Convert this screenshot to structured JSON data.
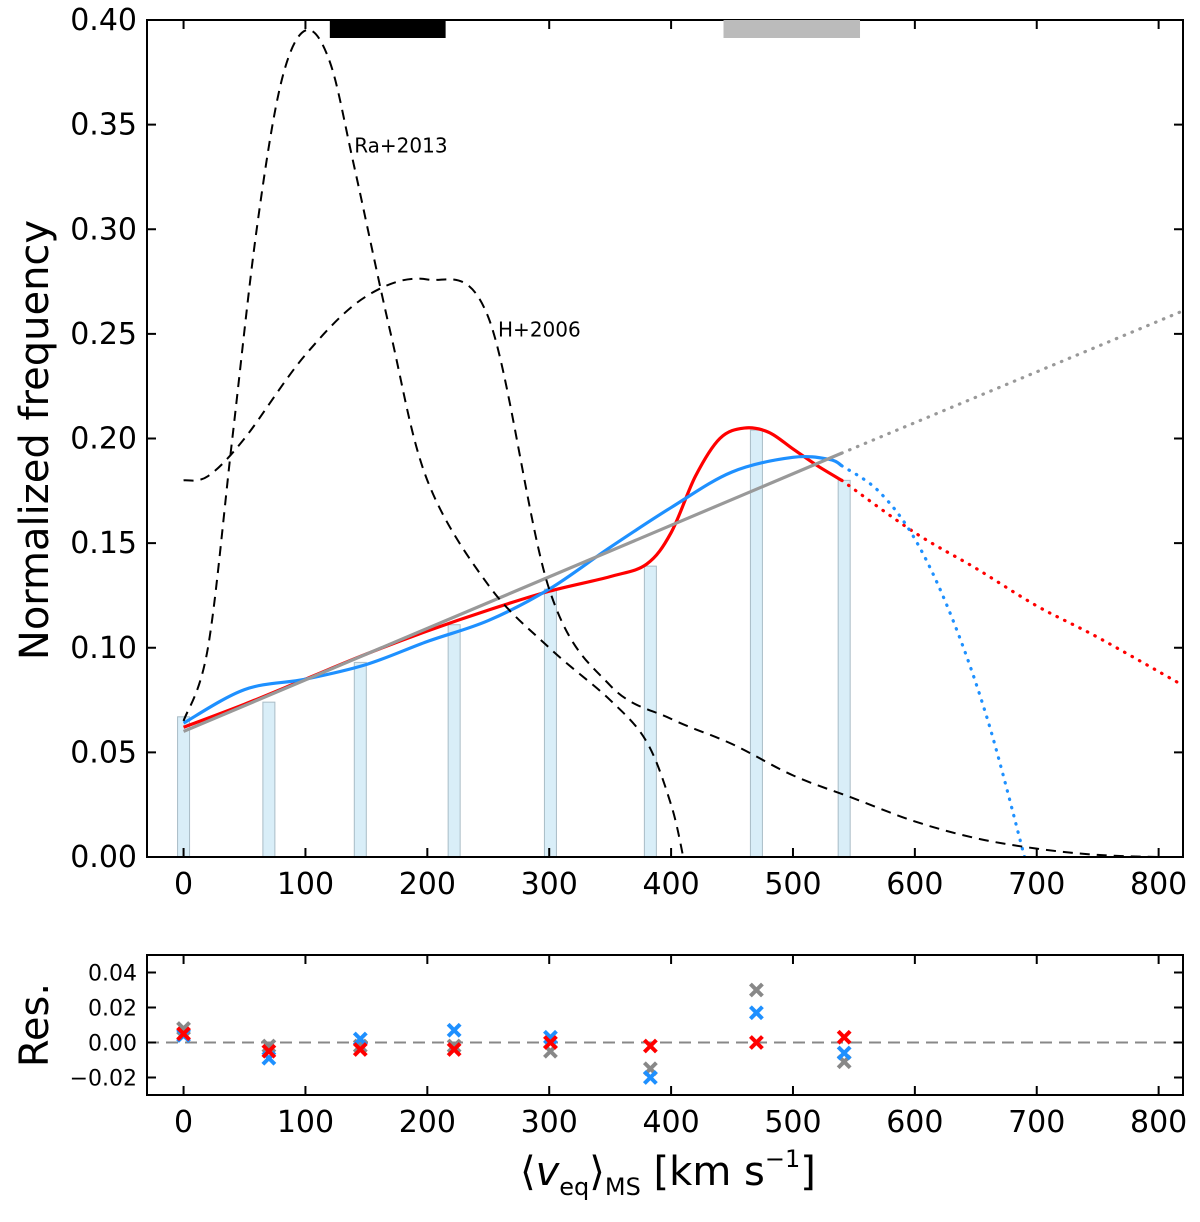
{
  "chart_data": [
    {
      "type": "bar",
      "title": "",
      "ylabel": "Normalized frequency",
      "xlabel": "",
      "xlim": [
        -30,
        820
      ],
      "ylim": [
        0,
        0.4
      ],
      "xticks": [
        "0",
        "100",
        "200",
        "300",
        "400",
        "500",
        "600",
        "700",
        "800"
      ],
      "yticks": [
        "0.00",
        "0.05",
        "0.10",
        "0.15",
        "0.20",
        "0.25",
        "0.30",
        "0.35",
        "0.40"
      ],
      "histogram": {
        "x": [
          0,
          70,
          145,
          222,
          301,
          383,
          470,
          542
        ],
        "values": [
          0.067,
          0.074,
          0.093,
          0.111,
          0.128,
          0.139,
          0.204,
          0.18
        ],
        "color": "#d9eef8"
      },
      "series": [
        {
          "name": "red fit",
          "color": "#ff0000",
          "x": [
            0,
            50,
            100,
            150,
            200,
            250,
            300,
            350,
            380,
            400,
            420,
            440,
            460,
            480,
            500,
            520,
            540
          ],
          "y": [
            0.062,
            0.073,
            0.085,
            0.097,
            0.108,
            0.118,
            0.127,
            0.134,
            0.14,
            0.155,
            0.182,
            0.2,
            0.205,
            0.203,
            0.195,
            0.187,
            0.18
          ]
        },
        {
          "name": "red extrapolation",
          "color": "#ff0000",
          "dotted": true,
          "x": [
            540,
            600,
            650,
            700,
            750,
            820
          ],
          "y": [
            0.18,
            0.155,
            0.138,
            0.12,
            0.105,
            0.082
          ]
        },
        {
          "name": "blue fit",
          "color": "#1e90ff",
          "x": [
            0,
            50,
            100,
            150,
            200,
            250,
            300,
            350,
            400,
            450,
            500,
            530,
            540
          ],
          "y": [
            0.064,
            0.08,
            0.085,
            0.092,
            0.103,
            0.113,
            0.128,
            0.148,
            0.167,
            0.184,
            0.191,
            0.19,
            0.187
          ]
        },
        {
          "name": "blue extrapolation",
          "color": "#1e90ff",
          "dotted": true,
          "x": [
            540,
            570,
            600,
            630,
            660,
            690
          ],
          "y": [
            0.187,
            0.175,
            0.152,
            0.115,
            0.065,
            0.0
          ]
        },
        {
          "name": "gray linear fit",
          "color": "#999999",
          "x": [
            0,
            540
          ],
          "y": [
            0.06,
            0.193
          ]
        },
        {
          "name": "gray extrapolation",
          "color": "#999999",
          "dotted": true,
          "x": [
            540,
            820
          ],
          "y": [
            0.193,
            0.261
          ]
        },
        {
          "name": "Ra+2013",
          "color": "#000000",
          "dashed": true,
          "x": [
            0,
            20,
            40,
            60,
            80,
            100,
            120,
            140,
            170,
            200,
            250,
            300,
            350,
            380,
            400,
            410
          ],
          "y": [
            0.065,
            0.1,
            0.2,
            0.3,
            0.37,
            0.395,
            0.38,
            0.33,
            0.25,
            0.18,
            0.13,
            0.1,
            0.075,
            0.055,
            0.025,
            0.0
          ]
        },
        {
          "name": "H+2006",
          "color": "#000000",
          "dashed": true,
          "x": [
            0,
            20,
            50,
            100,
            150,
            200,
            250,
            300,
            350,
            400,
            450,
            500,
            550,
            600,
            650,
            700,
            750,
            800
          ],
          "y": [
            0.18,
            0.182,
            0.2,
            0.24,
            0.268,
            0.276,
            0.258,
            0.128,
            0.082,
            0.066,
            0.054,
            0.039,
            0.028,
            0.017,
            0.009,
            0.004,
            0.001,
            0.0
          ]
        }
      ],
      "range_bars": [
        {
          "name": "black range",
          "color": "#000000",
          "x0": 120,
          "x1": 215
        },
        {
          "name": "gray range",
          "color": "#bbbbbb",
          "x0": 443,
          "x1": 555
        }
      ],
      "annotations": [
        {
          "text": "Ra+2013",
          "x": 140,
          "y": 0.34
        },
        {
          "text": "H+2006",
          "x": 258,
          "y": 0.252
        }
      ]
    },
    {
      "type": "scatter",
      "title": "",
      "ylabel": "Res.",
      "xlabel": "⟨v_eq⟩_MS [km s^−1]",
      "xlim": [
        -30,
        820
      ],
      "ylim": [
        -0.03,
        0.05
      ],
      "xticks": [
        "0",
        "100",
        "200",
        "300",
        "400",
        "500",
        "600",
        "700",
        "800"
      ],
      "yticks": [
        "−0.02",
        "0.00",
        "0.02",
        "0.04"
      ],
      "zero_line": true,
      "series": [
        {
          "name": "gray residuals",
          "color": "#888888",
          "x": [
            0,
            70,
            145,
            222,
            301,
            383,
            470,
            542
          ],
          "y": [
            0.008,
            -0.002,
            -0.002,
            -0.002,
            -0.005,
            -0.015,
            0.03,
            -0.011
          ]
        },
        {
          "name": "blue residuals",
          "color": "#1e90ff",
          "x": [
            0,
            70,
            145,
            222,
            301,
            383,
            470,
            542
          ],
          "y": [
            0.004,
            -0.009,
            0.002,
            0.007,
            0.003,
            -0.02,
            0.017,
            -0.006
          ]
        },
        {
          "name": "red residuals",
          "color": "#ff0000",
          "x": [
            0,
            70,
            145,
            222,
            301,
            383,
            470,
            542
          ],
          "y": [
            0.005,
            -0.005,
            -0.004,
            -0.004,
            0.0,
            -0.002,
            0.0,
            0.003
          ]
        }
      ]
    }
  ]
}
